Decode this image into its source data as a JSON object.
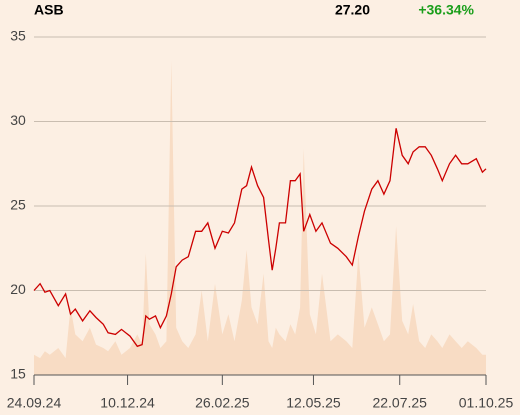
{
  "header": {
    "ticker": "ASB",
    "price": "27.20",
    "change": "+36.34%"
  },
  "chart_data": {
    "type": "line",
    "x": [
      "2024-09-24",
      "2024-09-29",
      "2024-10-03",
      "2024-10-07",
      "2024-10-14",
      "2024-10-20",
      "2024-10-24",
      "2024-10-28",
      "2024-11-03",
      "2024-11-09",
      "2024-11-14",
      "2024-11-20",
      "2024-11-24",
      "2024-11-30",
      "2024-12-05",
      "2024-12-12",
      "2024-12-18",
      "2024-12-22",
      "2024-12-25",
      "2024-12-28",
      "2025-01-02",
      "2025-01-06",
      "2025-01-11",
      "2025-01-15",
      "2025-01-19",
      "2025-01-24",
      "2025-01-29",
      "2025-02-04",
      "2025-02-09",
      "2025-02-14",
      "2025-02-20",
      "2025-02-26",
      "2025-03-03",
      "2025-03-08",
      "2025-03-14",
      "2025-03-18",
      "2025-03-22",
      "2025-03-27",
      "2025-04-01",
      "2025-04-05",
      "2025-04-08",
      "2025-04-11",
      "2025-04-14",
      "2025-04-19",
      "2025-04-23",
      "2025-04-27",
      "2025-05-01",
      "2025-05-04",
      "2025-05-09",
      "2025-05-14",
      "2025-05-19",
      "2025-05-26",
      "2025-06-01",
      "2025-06-08",
      "2025-06-13",
      "2025-06-18",
      "2025-06-23",
      "2025-06-29",
      "2025-07-04",
      "2025-07-09",
      "2025-07-14",
      "2025-07-19",
      "2025-07-24",
      "2025-07-29",
      "2025-08-02",
      "2025-08-07",
      "2025-08-12",
      "2025-08-17",
      "2025-08-22",
      "2025-08-26",
      "2025-09-01",
      "2025-09-06",
      "2025-09-11",
      "2025-09-16",
      "2025-09-23",
      "2025-09-28",
      "2025-10-01"
    ],
    "series": [
      {
        "color": "#cc0000",
        "values": [
          20.0,
          20.4,
          19.9,
          20.0,
          19.1,
          19.8,
          18.6,
          18.9,
          18.2,
          18.8,
          18.4,
          18.0,
          17.5,
          17.4,
          17.7,
          17.3,
          16.7,
          16.8,
          18.5,
          18.3,
          18.5,
          17.8,
          18.5,
          19.8,
          21.4,
          21.8,
          22.0,
          23.5,
          23.5,
          24.0,
          22.5,
          23.5,
          23.4,
          24.0,
          26.0,
          26.2,
          27.3,
          26.2,
          25.5,
          23.0,
          21.2,
          22.5,
          24.0,
          24.0,
          26.5,
          26.5,
          26.9,
          23.5,
          24.5,
          23.5,
          24.0,
          22.8,
          22.5,
          22.0,
          21.5,
          23.2,
          24.7,
          26.0,
          26.5,
          25.7,
          26.5,
          29.6,
          28.0,
          27.5,
          28.2,
          28.5,
          28.5,
          28.0,
          27.2,
          26.5,
          27.5,
          28.0,
          27.5,
          27.5,
          27.8,
          27.0,
          27.2
        ]
      }
    ],
    "volume": {
      "color": "#f8dcc4",
      "y2lim": [
        0,
        100
      ],
      "values": [
        6,
        5,
        7,
        6,
        8,
        5,
        20,
        12,
        10,
        14,
        9,
        8,
        7,
        10,
        6,
        8,
        12,
        9,
        36,
        15,
        12,
        8,
        10,
        93,
        14,
        10,
        8,
        12,
        25,
        10,
        27,
        12,
        18,
        10,
        22,
        37,
        20,
        15,
        30,
        10,
        8,
        14,
        12,
        10,
        15,
        12,
        20,
        67,
        18,
        12,
        30,
        10,
        12,
        10,
        8,
        36,
        14,
        20,
        15,
        10,
        12,
        44,
        16,
        12,
        21,
        10,
        8,
        12,
        10,
        8,
        12,
        10,
        8,
        10,
        8,
        6,
        6
      ]
    },
    "xlim": [
      "2024-09-24",
      "2025-10-01"
    ],
    "xticks": [
      {
        "value": "2024-09-24",
        "label": "24.09.24"
      },
      {
        "value": "2024-12-10",
        "label": "10.12.24"
      },
      {
        "value": "2025-02-26",
        "label": "26.02.25"
      },
      {
        "value": "2025-05-12",
        "label": "12.05.25"
      },
      {
        "value": "2025-07-22",
        "label": "22.07.25"
      },
      {
        "value": "2025-10-01",
        "label": "01.10.25"
      }
    ],
    "ylim": [
      15,
      35
    ],
    "yticks": [
      15,
      20,
      25,
      30,
      35
    ],
    "grid": true
  }
}
